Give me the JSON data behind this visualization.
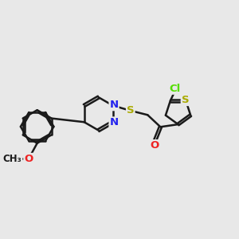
{
  "bg_color": "#e8e8e8",
  "bond_color": "#1a1a1a",
  "bond_width": 1.8,
  "atom_colors": {
    "N": "#2222ee",
    "S": "#aaaa00",
    "O": "#ee2222",
    "Cl": "#55dd00",
    "C": "#1a1a1a"
  },
  "font_size": 9.5,
  "dbo": 0.055
}
